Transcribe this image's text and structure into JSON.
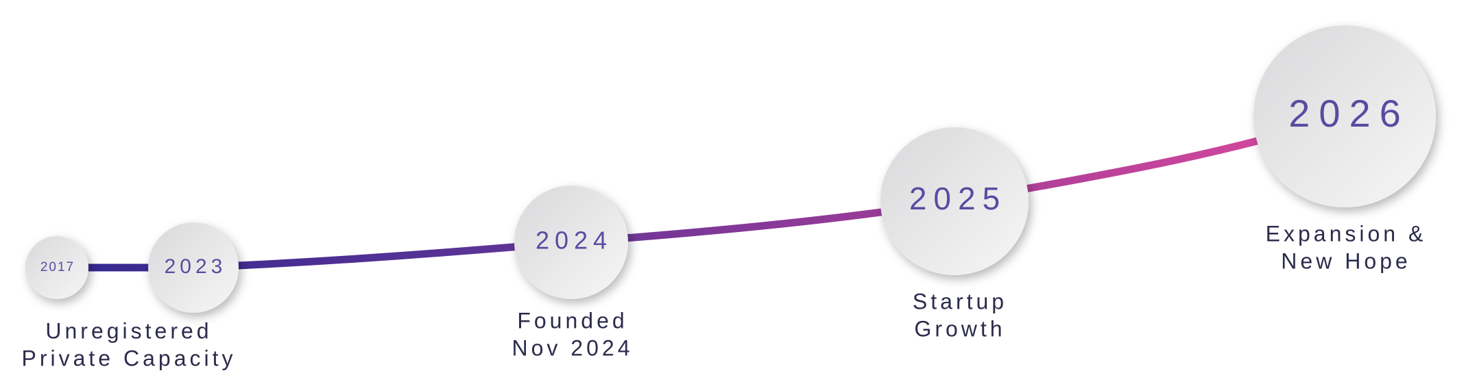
{
  "milestones": [
    {
      "year": "2017",
      "label": [
        "Unregistered",
        "Private Capacity"
      ]
    },
    {
      "year": "2023",
      "label": []
    },
    {
      "year": "2024",
      "label": [
        "Founded",
        "Nov 2024"
      ]
    },
    {
      "year": "2025",
      "label": [
        "Startup",
        "Growth"
      ]
    },
    {
      "year": "2026",
      "label": [
        "Expansion &",
        "New Hope"
      ]
    }
  ]
}
